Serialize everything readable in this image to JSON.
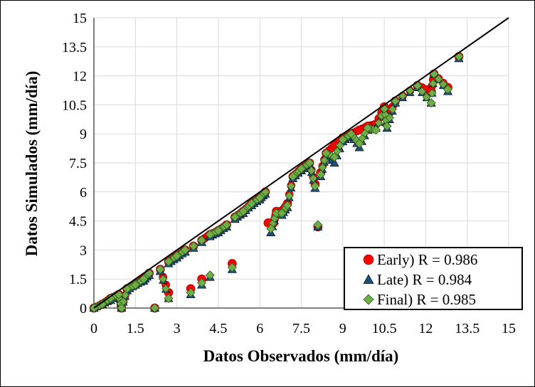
{
  "chart_data": {
    "type": "scatter",
    "title": "",
    "xlabel": "Datos Observados (mm/día)",
    "ylabel": "Datos Simulados (mm/día)",
    "xlim": [
      0,
      15
    ],
    "ylim": [
      0,
      15
    ],
    "xticks": [
      "0",
      "1.5",
      "3",
      "4.5",
      "6",
      "7.5",
      "9",
      "10.5",
      "12",
      "13.5",
      "15"
    ],
    "yticks": [
      "0",
      "1.5",
      "3",
      "4.5",
      "6",
      "7.5",
      "9",
      "10.5",
      "12",
      "13.5",
      "15"
    ],
    "grid": true,
    "legend_position": "bottom-right",
    "reference_line": {
      "name": "1:1",
      "points": [
        [
          0,
          0
        ],
        [
          15,
          15
        ]
      ],
      "color": "#000000"
    },
    "series": [
      {
        "name": "Early) R = 0.986",
        "marker": "circle",
        "color": "#ff0000",
        "points": [
          [
            0.0,
            0.0
          ],
          [
            0.3,
            0.2
          ],
          [
            0.6,
            0.5
          ],
          [
            0.9,
            0.7
          ],
          [
            1.0,
            0.0
          ],
          [
            1.2,
            1.0
          ],
          [
            1.5,
            1.2
          ],
          [
            1.8,
            1.5
          ],
          [
            2.0,
            1.8
          ],
          [
            2.2,
            0.0
          ],
          [
            2.4,
            2.0
          ],
          [
            2.7,
            0.8
          ],
          [
            2.7,
            2.4
          ],
          [
            3.0,
            2.7
          ],
          [
            3.3,
            3.0
          ],
          [
            3.5,
            1.0
          ],
          [
            3.6,
            3.2
          ],
          [
            3.9,
            1.5
          ],
          [
            3.9,
            3.5
          ],
          [
            4.2,
            3.8
          ],
          [
            4.5,
            4.0
          ],
          [
            4.8,
            4.3
          ],
          [
            5.0,
            2.3
          ],
          [
            5.1,
            4.7
          ],
          [
            5.4,
            5.0
          ],
          [
            5.7,
            5.4
          ],
          [
            6.0,
            5.7
          ],
          [
            6.2,
            6.0
          ],
          [
            6.3,
            4.4
          ],
          [
            6.5,
            4.4
          ],
          [
            6.6,
            5.0
          ],
          [
            6.8,
            5.0
          ],
          [
            7.0,
            5.4
          ],
          [
            7.2,
            6.8
          ],
          [
            7.5,
            7.2
          ],
          [
            7.8,
            7.5
          ],
          [
            8.0,
            6.4
          ],
          [
            8.1,
            4.2
          ],
          [
            8.2,
            7.0
          ],
          [
            8.4,
            8.0
          ],
          [
            8.7,
            8.4
          ],
          [
            9.0,
            8.8
          ],
          [
            9.3,
            9.0
          ],
          [
            9.6,
            9.2
          ],
          [
            9.9,
            9.4
          ],
          [
            10.2,
            9.5
          ],
          [
            10.5,
            10.4
          ],
          [
            10.6,
            9.8
          ],
          [
            10.9,
            10.7
          ],
          [
            11.7,
            11.5
          ],
          [
            12.2,
            11.2
          ],
          [
            12.3,
            12.1
          ],
          [
            12.8,
            11.4
          ],
          [
            13.2,
            13.0
          ]
        ]
      },
      {
        "name": "Late) R = 0.984",
        "marker": "triangle",
        "color": "#1f4e79",
        "points": [
          [
            0.0,
            0.0
          ],
          [
            0.3,
            0.2
          ],
          [
            0.6,
            0.4
          ],
          [
            0.9,
            0.7
          ],
          [
            1.0,
            0.0
          ],
          [
            1.2,
            0.9
          ],
          [
            1.5,
            1.2
          ],
          [
            1.8,
            1.4
          ],
          [
            2.0,
            1.7
          ],
          [
            2.2,
            0.0
          ],
          [
            2.4,
            1.9
          ],
          [
            2.7,
            0.5
          ],
          [
            2.7,
            2.3
          ],
          [
            3.0,
            2.6
          ],
          [
            3.3,
            2.9
          ],
          [
            3.5,
            0.7
          ],
          [
            3.6,
            3.1
          ],
          [
            3.9,
            1.2
          ],
          [
            3.9,
            3.4
          ],
          [
            4.2,
            1.6
          ],
          [
            4.2,
            3.7
          ],
          [
            4.5,
            3.9
          ],
          [
            4.8,
            4.2
          ],
          [
            5.0,
            2.0
          ],
          [
            5.1,
            4.6
          ],
          [
            5.4,
            4.9
          ],
          [
            5.7,
            5.3
          ],
          [
            6.0,
            5.6
          ],
          [
            6.2,
            5.9
          ],
          [
            6.4,
            3.9
          ],
          [
            6.6,
            4.8
          ],
          [
            6.8,
            4.8
          ],
          [
            7.0,
            5.2
          ],
          [
            7.2,
            6.7
          ],
          [
            7.5,
            7.1
          ],
          [
            7.8,
            7.4
          ],
          [
            8.0,
            6.2
          ],
          [
            8.1,
            4.2
          ],
          [
            8.2,
            6.8
          ],
          [
            8.4,
            7.9
          ],
          [
            8.7,
            7.5
          ],
          [
            9.0,
            8.6
          ],
          [
            9.3,
            8.9
          ],
          [
            9.6,
            8.3
          ],
          [
            9.9,
            9.2
          ],
          [
            10.2,
            9.3
          ],
          [
            10.5,
            10.2
          ],
          [
            10.6,
            9.3
          ],
          [
            10.9,
            10.6
          ],
          [
            11.7,
            11.4
          ],
          [
            12.2,
            10.6
          ],
          [
            12.3,
            12.1
          ],
          [
            12.8,
            11.2
          ],
          [
            13.2,
            12.9
          ]
        ]
      },
      {
        "name": "Final) R = 0.985",
        "marker": "diamond",
        "color": "#70ad47",
        "points": [
          [
            0.0,
            0.0
          ],
          [
            0.3,
            0.2
          ],
          [
            0.6,
            0.5
          ],
          [
            0.9,
            0.7
          ],
          [
            1.0,
            0.0
          ],
          [
            1.2,
            1.0
          ],
          [
            1.5,
            1.2
          ],
          [
            1.8,
            1.5
          ],
          [
            2.0,
            1.8
          ],
          [
            2.2,
            0.0
          ],
          [
            2.4,
            2.0
          ],
          [
            2.7,
            0.5
          ],
          [
            2.7,
            2.4
          ],
          [
            3.0,
            2.7
          ],
          [
            3.3,
            3.0
          ],
          [
            3.5,
            0.8
          ],
          [
            3.6,
            3.2
          ],
          [
            3.9,
            1.3
          ],
          [
            3.9,
            3.5
          ],
          [
            4.2,
            1.7
          ],
          [
            4.2,
            3.8
          ],
          [
            4.5,
            4.0
          ],
          [
            4.8,
            4.3
          ],
          [
            5.0,
            2.1
          ],
          [
            5.1,
            4.7
          ],
          [
            5.4,
            5.0
          ],
          [
            5.7,
            5.4
          ],
          [
            6.0,
            5.7
          ],
          [
            6.2,
            6.0
          ],
          [
            6.4,
            4.1
          ],
          [
            6.6,
            4.9
          ],
          [
            6.8,
            4.9
          ],
          [
            7.0,
            5.3
          ],
          [
            7.2,
            6.8
          ],
          [
            7.5,
            7.2
          ],
          [
            7.8,
            7.5
          ],
          [
            8.0,
            6.3
          ],
          [
            8.1,
            4.3
          ],
          [
            8.2,
            6.9
          ],
          [
            8.4,
            8.0
          ],
          [
            8.7,
            7.8
          ],
          [
            9.0,
            8.7
          ],
          [
            9.3,
            9.0
          ],
          [
            9.6,
            8.5
          ],
          [
            9.9,
            9.3
          ],
          [
            10.2,
            9.2
          ],
          [
            10.5,
            10.3
          ],
          [
            10.6,
            9.4
          ],
          [
            10.9,
            10.7
          ],
          [
            11.7,
            11.5
          ],
          [
            12.2,
            10.6
          ],
          [
            12.3,
            12.1
          ],
          [
            12.8,
            11.3
          ],
          [
            13.2,
            13.0
          ]
        ]
      }
    ]
  }
}
